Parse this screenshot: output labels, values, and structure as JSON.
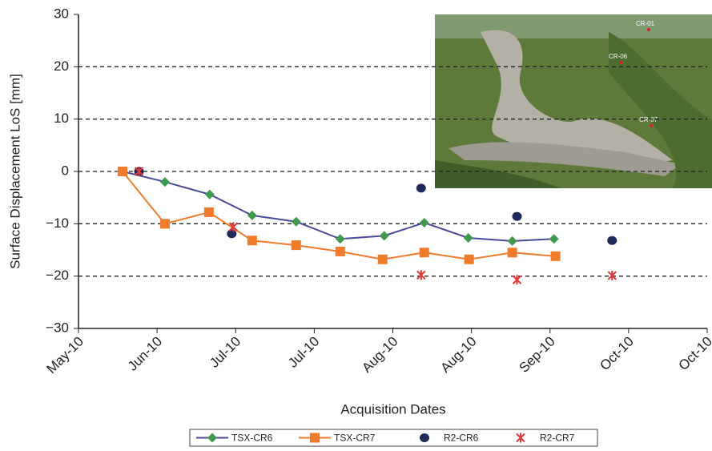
{
  "chart_data": {
    "type": "line",
    "x_label": "Acquisition Dates",
    "y_label": "Surface Displacement LoS [mm]",
    "xlim": [
      0,
      8
    ],
    "xticks": [
      {
        "value": 0,
        "label": "May-10"
      },
      {
        "value": 1,
        "label": "Jun-10"
      },
      {
        "value": 2,
        "label": "Jul-10"
      },
      {
        "value": 3,
        "label": "Jul-10"
      },
      {
        "value": 4,
        "label": "Aug-10"
      },
      {
        "value": 5,
        "label": "Aug-10"
      },
      {
        "value": 6,
        "label": "Sep-10"
      },
      {
        "value": 7,
        "label": "Oct-10"
      },
      {
        "value": 8,
        "label": "Oct-10"
      }
    ],
    "ylim": [
      -30,
      30
    ],
    "yticks": [
      {
        "value": -30,
        "label": "−30"
      },
      {
        "value": -20,
        "label": "−20"
      },
      {
        "value": -10,
        "label": "−10"
      },
      0,
      10,
      20,
      30
    ],
    "grid": true,
    "legend_position": "bottom",
    "inset_labels": [
      "CR-01",
      "CR-06",
      "CR-07"
    ],
    "series": [
      {
        "name": "TSX-CR6",
        "color": "#4a4a9c",
        "marker_color": "#3f9a4e",
        "marker": "diamond",
        "line": true,
        "x": [
          0.56,
          1.1,
          1.67,
          2.21,
          2.77,
          3.33,
          3.89,
          4.4,
          4.96,
          5.52,
          6.05
        ],
        "values": [
          0,
          -2,
          -4.4,
          -8.4,
          -9.6,
          -12.9,
          -12.3,
          -9.8,
          -12.7,
          -13.3,
          -12.9
        ]
      },
      {
        "name": "TSX-CR7",
        "color": "#f07b2c",
        "marker_color": "#f07b2c",
        "marker": "square",
        "line": true,
        "x": [
          0.56,
          1.1,
          1.66,
          2.21,
          2.77,
          3.33,
          3.87,
          4.4,
          4.97,
          5.52,
          6.07
        ],
        "values": [
          0,
          -10,
          -7.8,
          -13.2,
          -14.1,
          -15.3,
          -16.8,
          -15.5,
          -16.8,
          -15.5,
          -16.2
        ]
      },
      {
        "name": "R2-CR6",
        "color": "#1f2a5a",
        "marker_color": "#1f2a5a",
        "marker": "circle",
        "line": false,
        "x": [
          0.77,
          1.95,
          4.36,
          5.58,
          6.79
        ],
        "values": [
          0,
          -11.9,
          -3.2,
          -8.6,
          -13.2
        ]
      },
      {
        "name": "R2-CR7",
        "color": "#e03a3a",
        "marker_color": "#e03a3a",
        "marker": "star",
        "line": false,
        "x": [
          0.77,
          1.97,
          4.36,
          5.58,
          6.79
        ],
        "values": [
          0,
          -10.6,
          -19.8,
          -20.7,
          -19.9
        ]
      }
    ]
  }
}
